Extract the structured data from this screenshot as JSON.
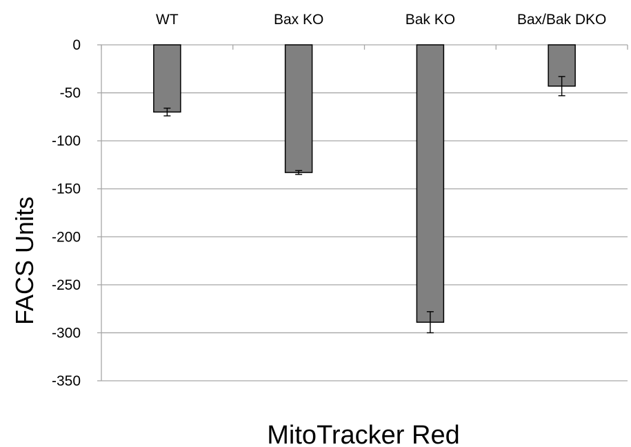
{
  "chart_data": {
    "type": "bar",
    "categories": [
      "WT",
      "Bax KO",
      "Bak KO",
      "Bax/Bak DKO"
    ],
    "values": [
      -70,
      -133,
      -289,
      -43
    ],
    "errors": [
      4,
      2,
      11,
      10
    ],
    "xlabel": "MitoTracker Red",
    "ylabel": "FACS Units",
    "ylim": [
      -350,
      0
    ],
    "yticks": [
      0,
      -50,
      -100,
      -150,
      -200,
      -250,
      -300,
      -350
    ],
    "ytick_labels": [
      "0",
      "-50",
      "-100",
      "-150",
      "-200",
      "-250",
      "-300",
      "-350"
    ],
    "grid": true,
    "category_labels_position": "top",
    "bar_color": "#808080",
    "bar_edge_color": "#000000",
    "grid_color": "#a6a6a6",
    "legend": null
  }
}
